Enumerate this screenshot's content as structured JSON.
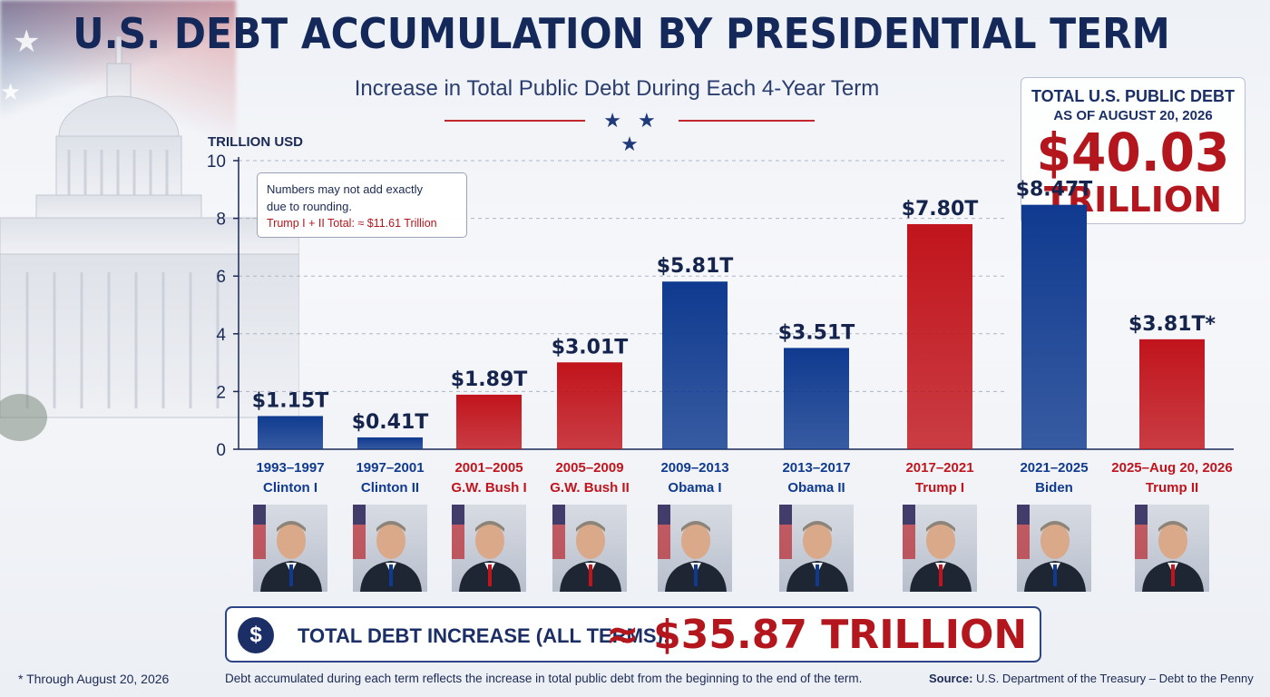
{
  "title": "U.S. DEBT ACCUMULATION BY PRESIDENTIAL TERM",
  "subtitle": "Increase in Total Public Debt During Each 4-Year Term",
  "decor_stars": "★ ★ ★",
  "total_box": {
    "line1": "TOTAL U.S. PUBLIC DEBT",
    "line2": "AS OF AUGUST 20, 2026",
    "value": "$40.03",
    "unit": "TRILLION"
  },
  "note": {
    "line1": "Numbers may not add exactly",
    "line2": "due to rounding.",
    "line3": "Trump I + II Total: ≈ $11.61 Trillion"
  },
  "summary": {
    "icon": "$",
    "label": "TOTAL DEBT INCREASE (ALL TERMS):",
    "value": "≈ $35.87 TRILLION"
  },
  "footer": {
    "left": "* Through August 20, 2026",
    "center": "Debt accumulated during each term reflects the increase in total public debt from the beginning to the end of the term.",
    "source_label": "Source:",
    "source_text": "U.S. Department of the Treasury – Debt to the Penny"
  },
  "colors": {
    "blue": "#0f3a8f",
    "red": "#c1141c",
    "axis": "#1b2a55"
  },
  "chart_data": {
    "type": "bar",
    "ylabel": "TRILLION USD",
    "ylim": [
      0,
      10
    ],
    "yticks": [
      0,
      2,
      4,
      6,
      8,
      10
    ],
    "grid": true,
    "categories": [
      "1993–1997",
      "1997–2001",
      "2001–2005",
      "2005–2009",
      "2009–2013",
      "2013–2017",
      "2017–2021",
      "2021–2025",
      "2025–Aug 20, 2026"
    ],
    "presidents": [
      "Clinton I",
      "Clinton II",
      "G.W. Bush I",
      "G.W. Bush II",
      "Obama I",
      "Obama II",
      "Trump I",
      "Biden",
      "Trump II"
    ],
    "values": [
      1.15,
      0.41,
      1.89,
      3.01,
      5.81,
      3.51,
      7.8,
      8.47,
      3.81
    ],
    "data_labels": [
      "$1.15T",
      "$0.41T",
      "$1.89T",
      "$3.01T",
      "$5.81T",
      "$3.51T",
      "$7.80T",
      "$8.47T",
      "$3.81T*"
    ],
    "bar_colors": [
      "#0f3a8f",
      "#0f3a8f",
      "#c1141c",
      "#c1141c",
      "#0f3a8f",
      "#0f3a8f",
      "#c1141c",
      "#0f3a8f",
      "#c1141c"
    ],
    "portrait_icons": [
      "portrait-icon",
      "portrait-icon",
      "portrait-icon",
      "portrait-icon",
      "portrait-icon",
      "portrait-icon",
      "portrait-icon",
      "portrait-icon",
      "portrait-icon"
    ]
  }
}
